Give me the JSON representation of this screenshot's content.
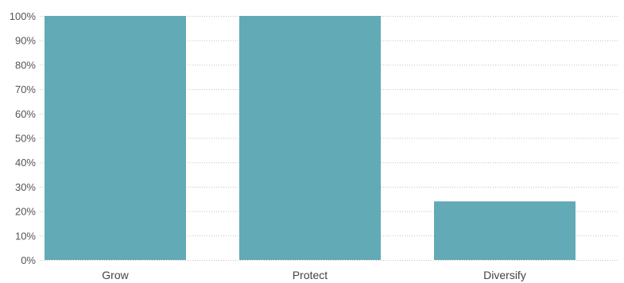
{
  "chart_data": {
    "type": "bar",
    "categories": [
      "Grow",
      "Protect",
      "Diversify"
    ],
    "values": [
      100,
      100,
      24
    ],
    "ylim": [
      0,
      100
    ],
    "yticks": [
      "0%",
      "10%",
      "20%",
      "30%",
      "40%",
      "50%",
      "60%",
      "70%",
      "80%",
      "90%",
      "100%"
    ],
    "grid": true,
    "bar_color": "#62aab5",
    "title": "",
    "xlabel": "",
    "ylabel": ""
  }
}
